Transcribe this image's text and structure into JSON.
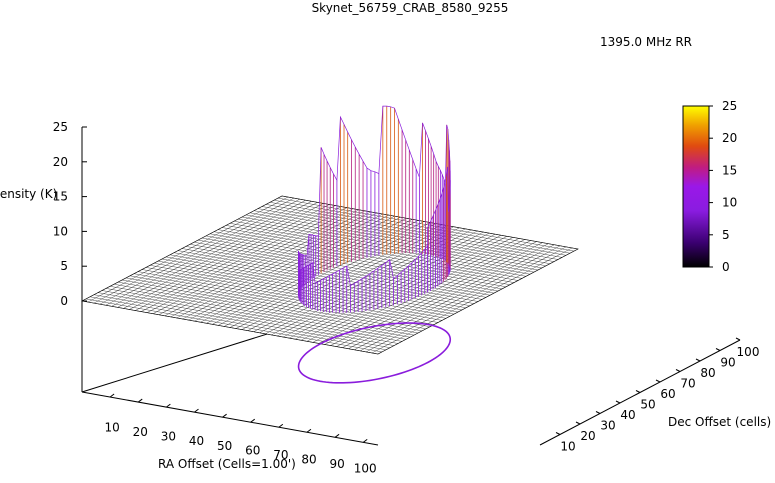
{
  "chart_data": {
    "type": "surface3d",
    "title": "Skynet_56759_CRAB_8580_9255",
    "legend": {
      "label": "1395.0 MHz RR",
      "placement": "top-right"
    },
    "xlabel": "RA Offset (Cells=1.00')",
    "ylabel": "Dec Offset (cells)",
    "zlabel": "Intensity (K)",
    "x_ticks": [
      "10",
      "20",
      "30",
      "40",
      "50",
      "60",
      "70",
      "80",
      "90",
      "100"
    ],
    "y_ticks": [
      "10",
      "20",
      "30",
      "40",
      "50",
      "60",
      "70",
      "80",
      "90",
      "100"
    ],
    "z_ticks": [
      "0",
      "5",
      "10",
      "15",
      "20",
      "25"
    ],
    "colorbar_ticks": [
      "0",
      "5",
      "10",
      "15",
      "20",
      "25"
    ],
    "xlim": [
      0,
      100
    ],
    "ylim": [
      0,
      100
    ],
    "zlim": [
      0,
      25
    ],
    "colormap": [
      "#000000",
      "#3a0070",
      "#7a1fd0",
      "#9a18e8",
      "#c81c6a",
      "#e05010",
      "#f0a000",
      "#ffff00"
    ],
    "surface_mesh_color": "#000000",
    "ring_color": "#8a1cdc",
    "grid": false,
    "ring_scan": {
      "center_x": 65,
      "center_y": 50,
      "radius_cells": 30,
      "baseline_intensity": 7,
      "peaks": [
        {
          "angle_deg": 180,
          "intensity": 24
        },
        {
          "angle_deg": 160,
          "intensity": 22
        },
        {
          "angle_deg": 140,
          "intensity": 19
        },
        {
          "angle_deg": 120,
          "intensity": 25
        },
        {
          "angle_deg": 100,
          "intensity": 20
        },
        {
          "angle_deg": 80,
          "intensity": 18
        },
        {
          "angle_deg": 60,
          "intensity": 21
        },
        {
          "angle_deg": 40,
          "intensity": 17
        },
        {
          "angle_deg": 20,
          "intensity": 16
        },
        {
          "angle_deg": 0,
          "intensity": 17
        }
      ]
    }
  }
}
